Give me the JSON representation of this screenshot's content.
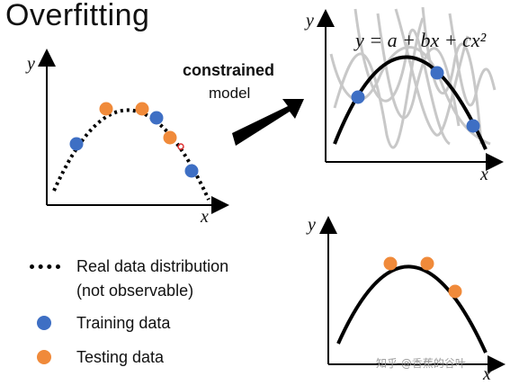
{
  "title": "Overfitting",
  "arrow_label_bold": "constrained",
  "arrow_label_normal": "model",
  "formula": "y = a + bx + cx²",
  "axis_x": "x",
  "axis_y": "y",
  "legend": {
    "real": "Real data distribution",
    "real_sub": "(not observable)",
    "training": "Training data",
    "testing": "Testing data"
  },
  "colors": {
    "training": "#3e6fc4",
    "testing": "#f08a3a",
    "grey_curves": "#c8c8c8"
  },
  "watermark": "知乎 @香蕉的谷叶"
}
